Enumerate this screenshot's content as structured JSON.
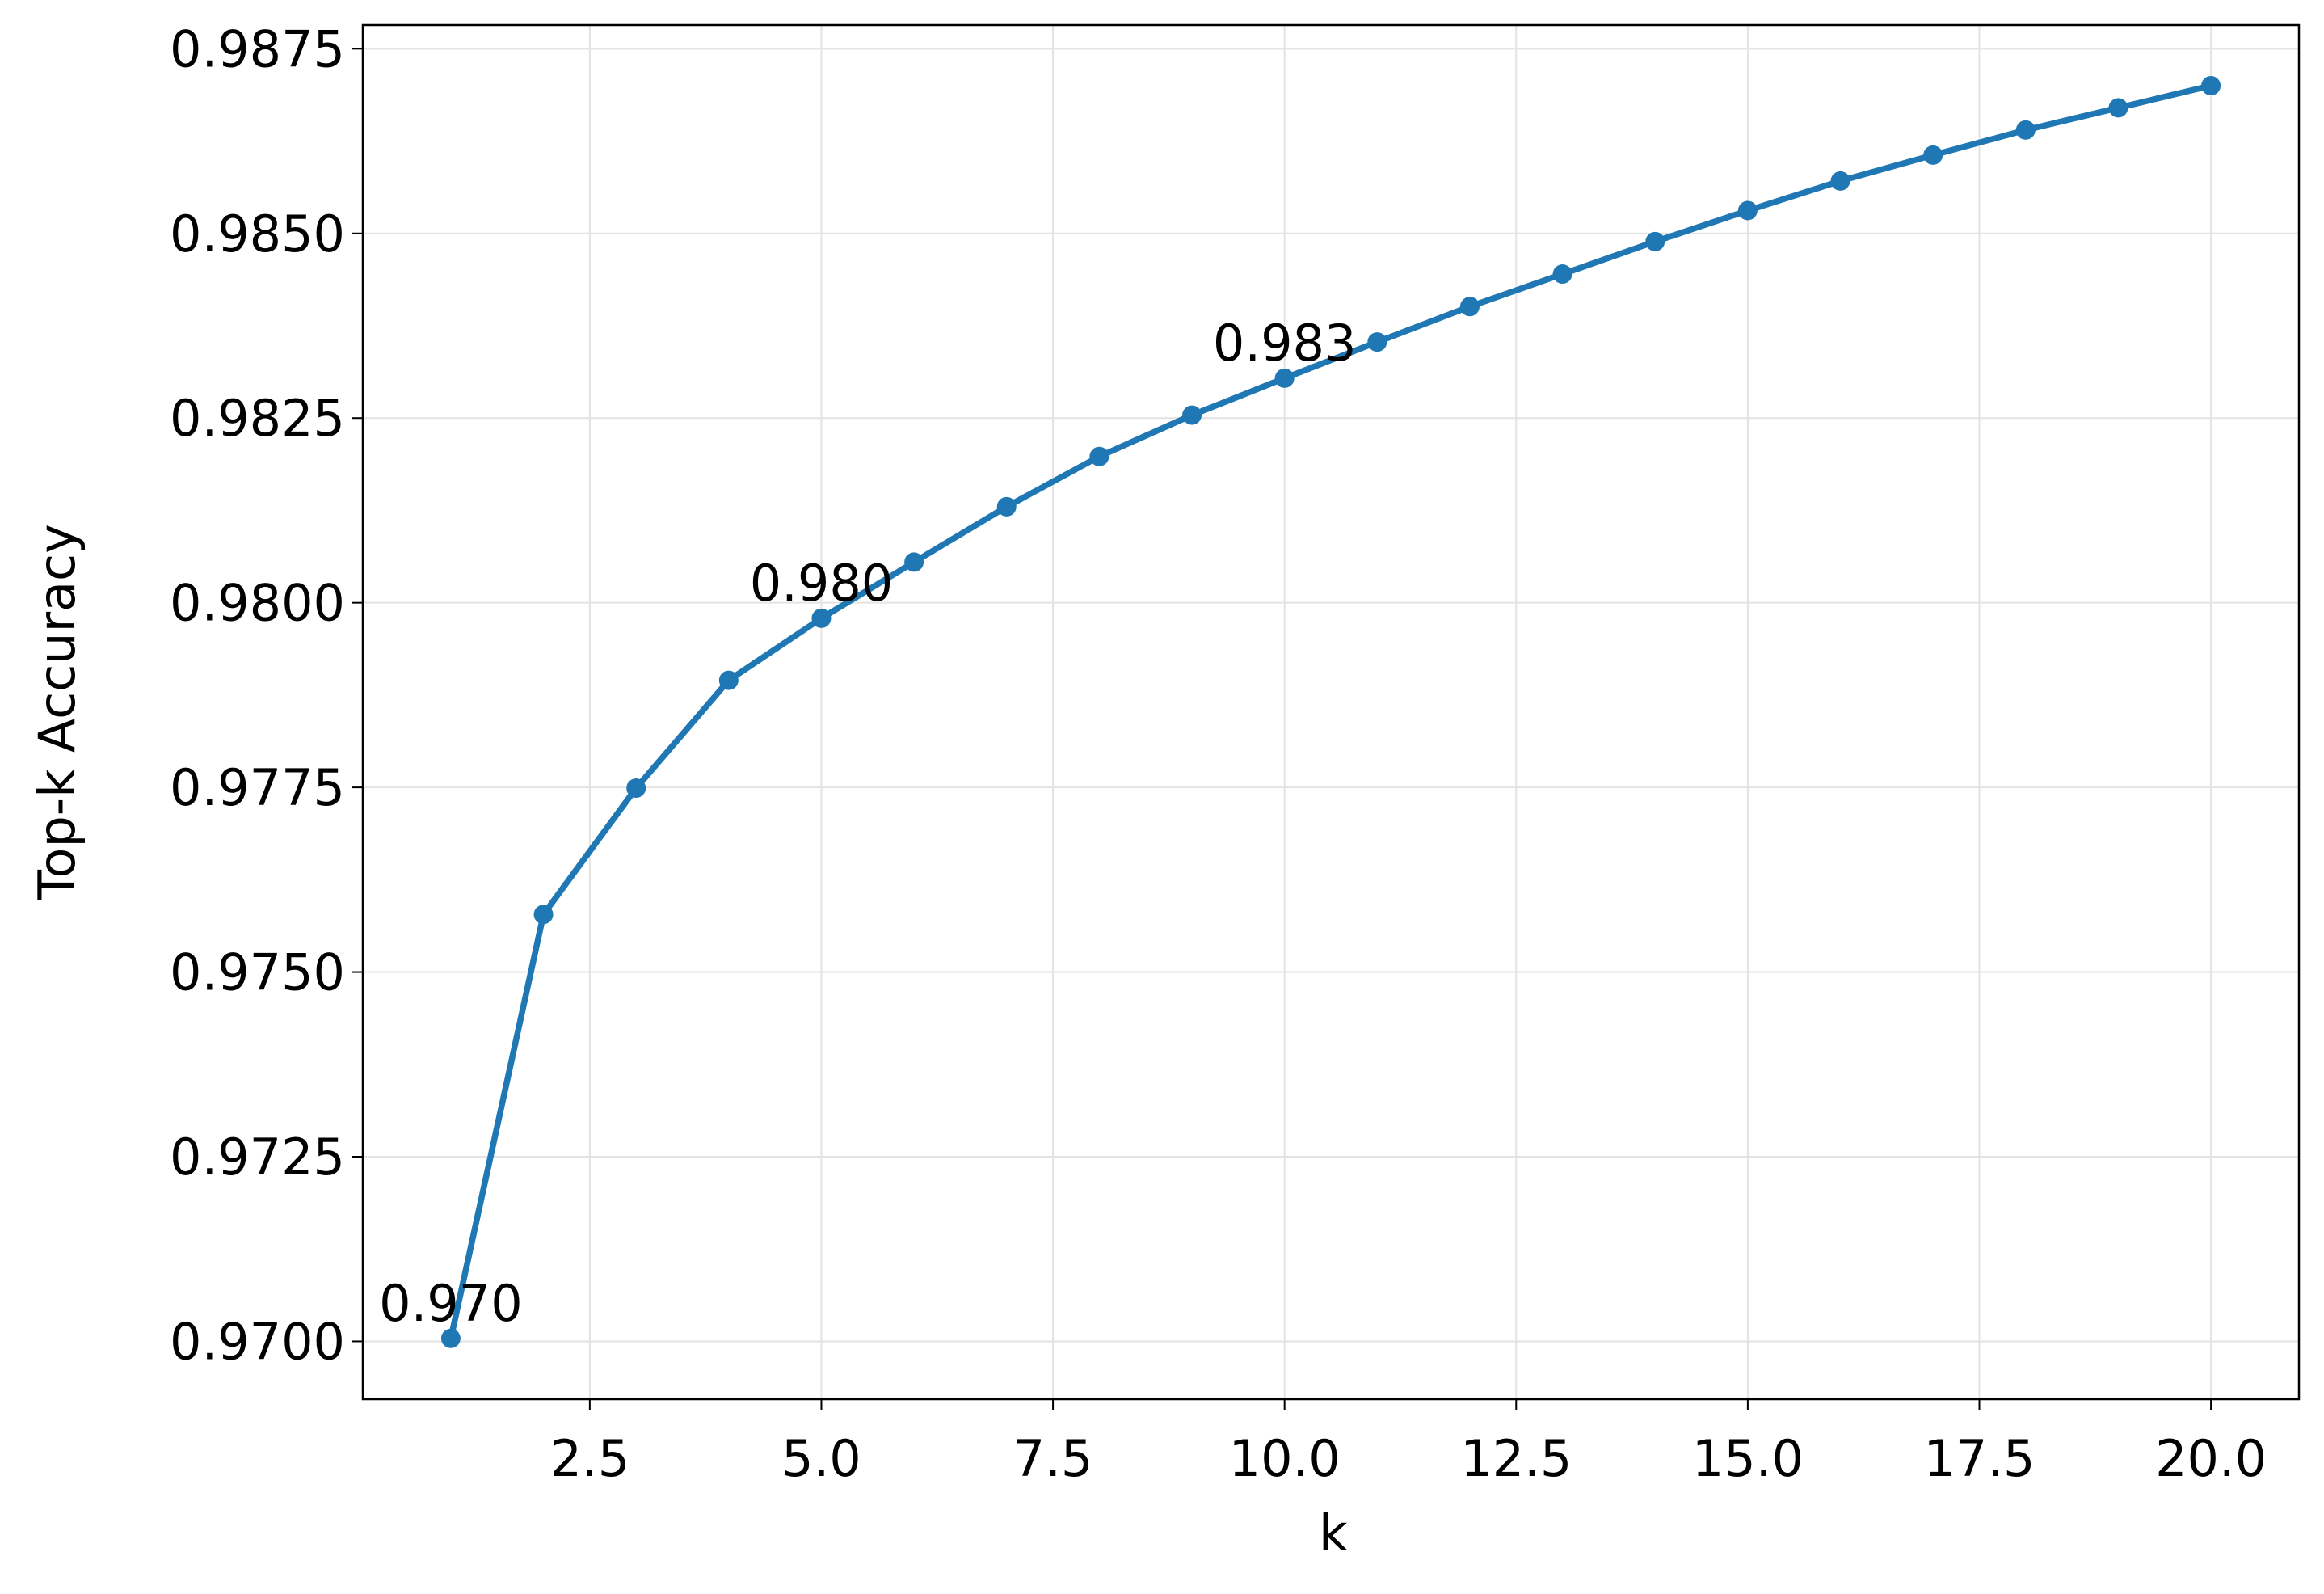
{
  "chart_data": {
    "type": "line",
    "xlabel": "k",
    "ylabel": "Top-k Accuracy",
    "x": [
      1,
      2,
      3,
      4,
      5,
      6,
      7,
      8,
      9,
      10,
      11,
      12,
      13,
      14,
      15,
      16,
      17,
      18,
      19,
      20
    ],
    "series": [
      {
        "color": "#1f77b4",
        "values": [
          0.97004,
          0.97578,
          0.97749,
          0.97895,
          0.97979,
          0.98055,
          0.9813,
          0.98198,
          0.98254,
          0.98304,
          0.98353,
          0.98401,
          0.98445,
          0.98489,
          0.98531,
          0.98571,
          0.98606,
          0.9864,
          0.9867,
          0.987
        ],
        "value_labels": [
          "0.970",
          null,
          null,
          null,
          "0.980",
          null,
          null,
          null,
          null,
          "0.983",
          null,
          null,
          null,
          null,
          null,
          null,
          null,
          null,
          null,
          null
        ]
      }
    ],
    "xlim": [
      0.05,
      20.95
    ],
    "ylim": [
      0.969217,
      0.987821
    ],
    "xticks": [
      2.5,
      {
        "value": 5,
        "label": "5.0"
      },
      7.5,
      {
        "value": 10,
        "label": "10.0"
      },
      12.5,
      {
        "value": 15,
        "label": "15.0"
      },
      17.5,
      {
        "value": 20,
        "label": "20.0"
      }
    ],
    "yticks": [
      {
        "value": 0.97,
        "label": "0.9700"
      },
      {
        "value": 0.9725,
        "label": "0.9725"
      },
      {
        "value": 0.975,
        "label": "0.9750"
      },
      {
        "value": 0.9775,
        "label": "0.9775"
      },
      {
        "value": 0.98,
        "label": "0.9800"
      },
      {
        "value": 0.9825,
        "label": "0.9825"
      },
      {
        "value": 0.985,
        "label": "0.9850"
      },
      {
        "value": 0.9875,
        "label": "0.9875"
      }
    ],
    "grid": true
  }
}
